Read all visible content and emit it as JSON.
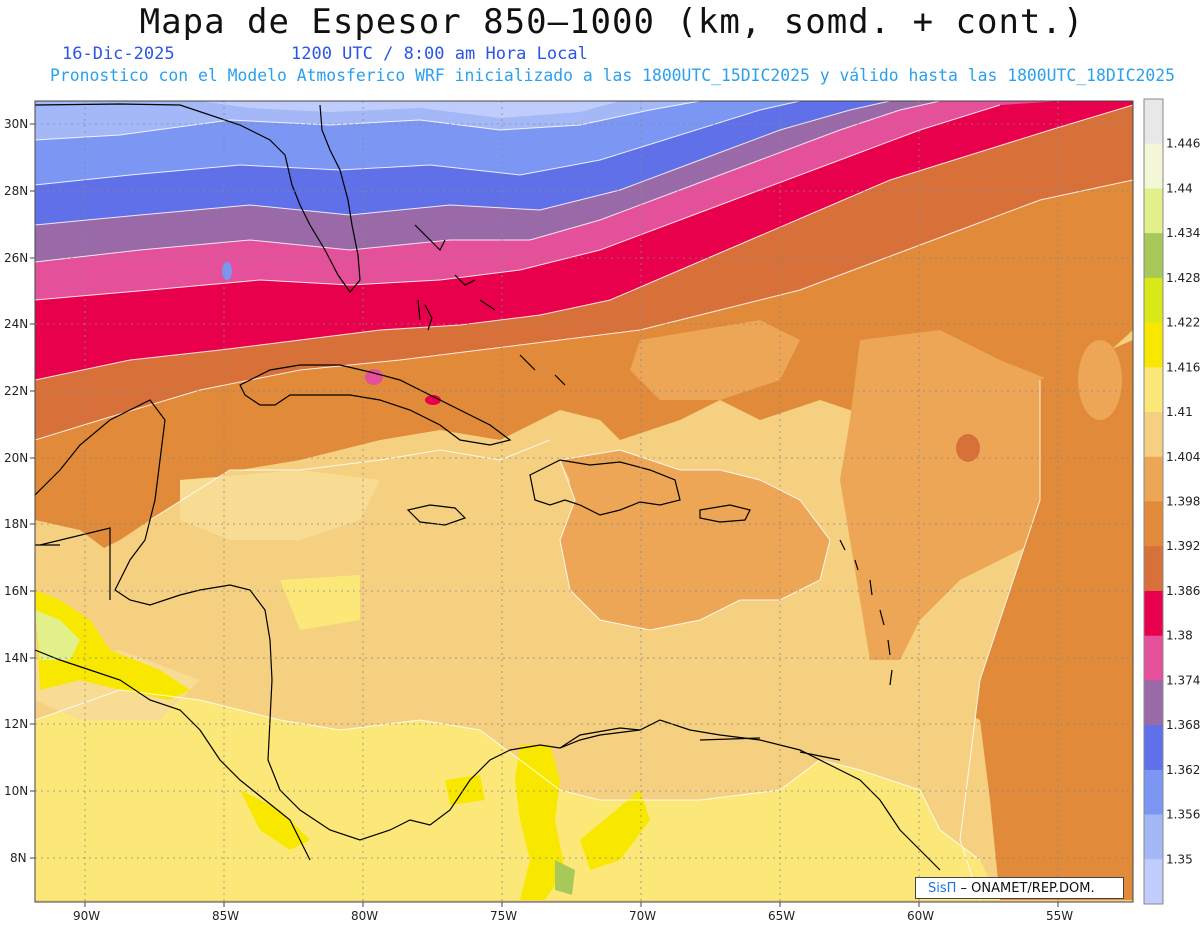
{
  "header": {
    "title": "Mapa de Espesor 850–1000 (km, somd. + cont.)",
    "date": "16-Dic-2025",
    "time": "1200 UTC / 8:00 am Hora Local",
    "description": "Pronostico con el Modelo Atmosferico WRF inicializado a las 1800UTC_15DIC2025 y válido hasta las  1800UTC_18DIC2025"
  },
  "axes": {
    "lat_labels": [
      "30N",
      "28N",
      "26N",
      "24N",
      "22N",
      "20N",
      "18N",
      "16N",
      "14N",
      "12N",
      "10N",
      "8N"
    ],
    "lon_labels": [
      "90W",
      "85W",
      "80W",
      "75W",
      "70W",
      "65W",
      "60W",
      "55W"
    ]
  },
  "colorbar": {
    "labels": [
      "1.446",
      "1.44",
      "1.434",
      "1.428",
      "1.422",
      "1.416",
      "1.41",
      "1.404",
      "1.398",
      "1.392",
      "1.386",
      "1.38",
      "1.374",
      "1.368",
      "1.362",
      "1.356",
      "1.35"
    ],
    "colors": [
      "#e8e8e8",
      "#f4f6d8",
      "#e2f08c",
      "#a8c85a",
      "#d8e818",
      "#f8e800",
      "#fce878",
      "#f4d080",
      "#eca656",
      "#e08a3a",
      "#d8703a",
      "#e8004c",
      "#e4509a",
      "#9a6aa8",
      "#6070e8",
      "#7c96f4",
      "#a4b8f8",
      "#c0cdfc"
    ]
  },
  "credit": {
    "brand": "SisΠ",
    "text": " – ONAMET/REP.DOM."
  }
}
